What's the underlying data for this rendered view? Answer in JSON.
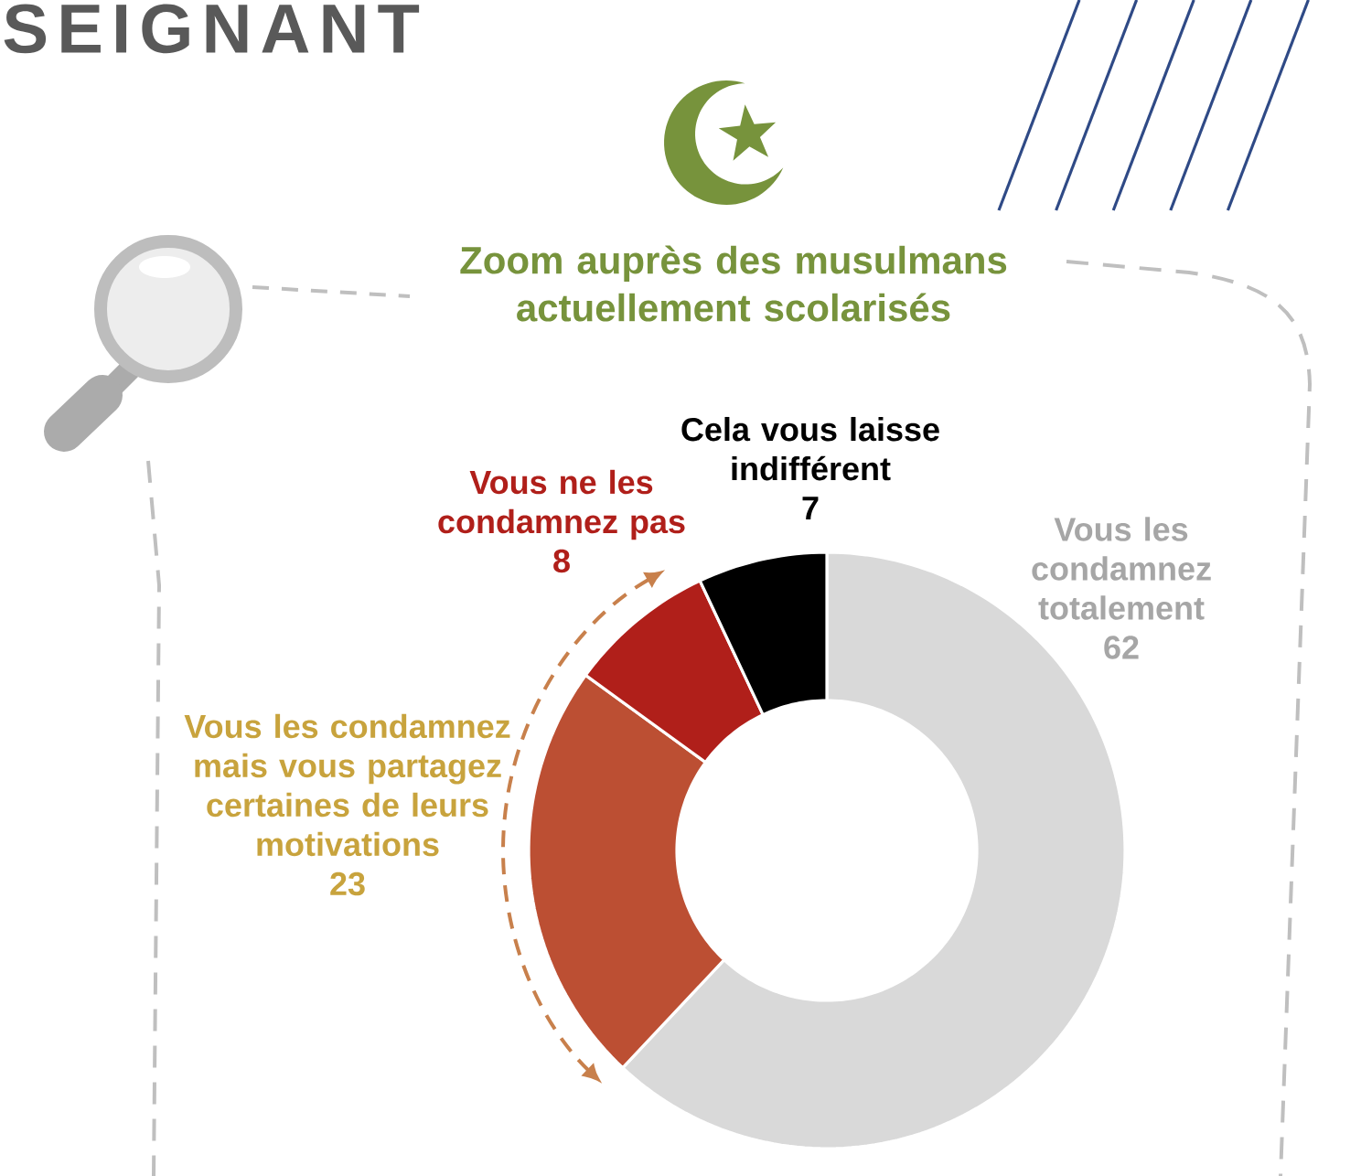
{
  "chart_data": {
    "type": "donut",
    "title": "Zoom auprès des musulmans actuellement scolarisés",
    "annotations": [
      "SEIGNANT"
    ],
    "categories": [
      "Vous les condamnez totalement",
      "Vous les condamnez mais vous partagez certaines de leurs motivations",
      "Vous ne les condamnez pas",
      "Cela vous laisse indifférent"
    ],
    "values": [
      62,
      23,
      8,
      7
    ],
    "colors": [
      "#d9d9d9",
      "#bc4f33",
      "#b01f1a",
      "#000000"
    ],
    "data_labels": true
  }
}
